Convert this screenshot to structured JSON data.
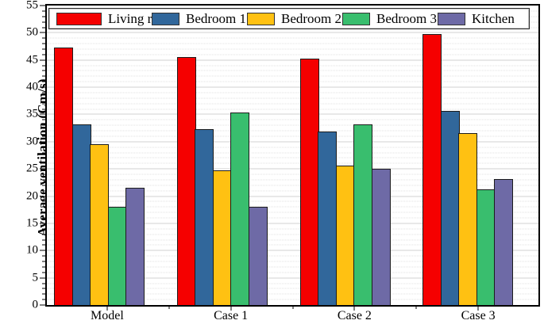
{
  "chart_data": {
    "type": "bar",
    "title": "",
    "xlabel": "",
    "ylabel": "Average ventilation (Cm/s)",
    "ylim": [
      0,
      55
    ],
    "ytick_step": 5,
    "yticks": [
      0,
      5,
      10,
      15,
      20,
      25,
      30,
      35,
      40,
      45,
      50,
      55
    ],
    "minor_tick_step": 1,
    "grid": {
      "major": true,
      "minor": true
    },
    "legend_position": "top",
    "categories": [
      "Model",
      "Case 1",
      "Case 2",
      "Case 3"
    ],
    "series": [
      {
        "name": "Living room",
        "color": "#f50000",
        "values": [
          47.3,
          45.6,
          45.2,
          49.8
        ]
      },
      {
        "name": "Bedroom 1",
        "color": "#31679b",
        "values": [
          33.2,
          32.3,
          31.8,
          35.7
        ]
      },
      {
        "name": "Bedroom 2",
        "color": "#ffc112",
        "values": [
          29.5,
          24.7,
          25.6,
          31.6
        ]
      },
      {
        "name": "Bedroom 3",
        "color": "#39be6e",
        "values": [
          18.0,
          35.4,
          33.2,
          21.2
        ]
      },
      {
        "name": "Kitchen",
        "color": "#6e6aa6",
        "values": [
          21.6,
          18.1,
          25.0,
          23.1
        ]
      }
    ],
    "bar_border_color": "#1c1c1c"
  }
}
